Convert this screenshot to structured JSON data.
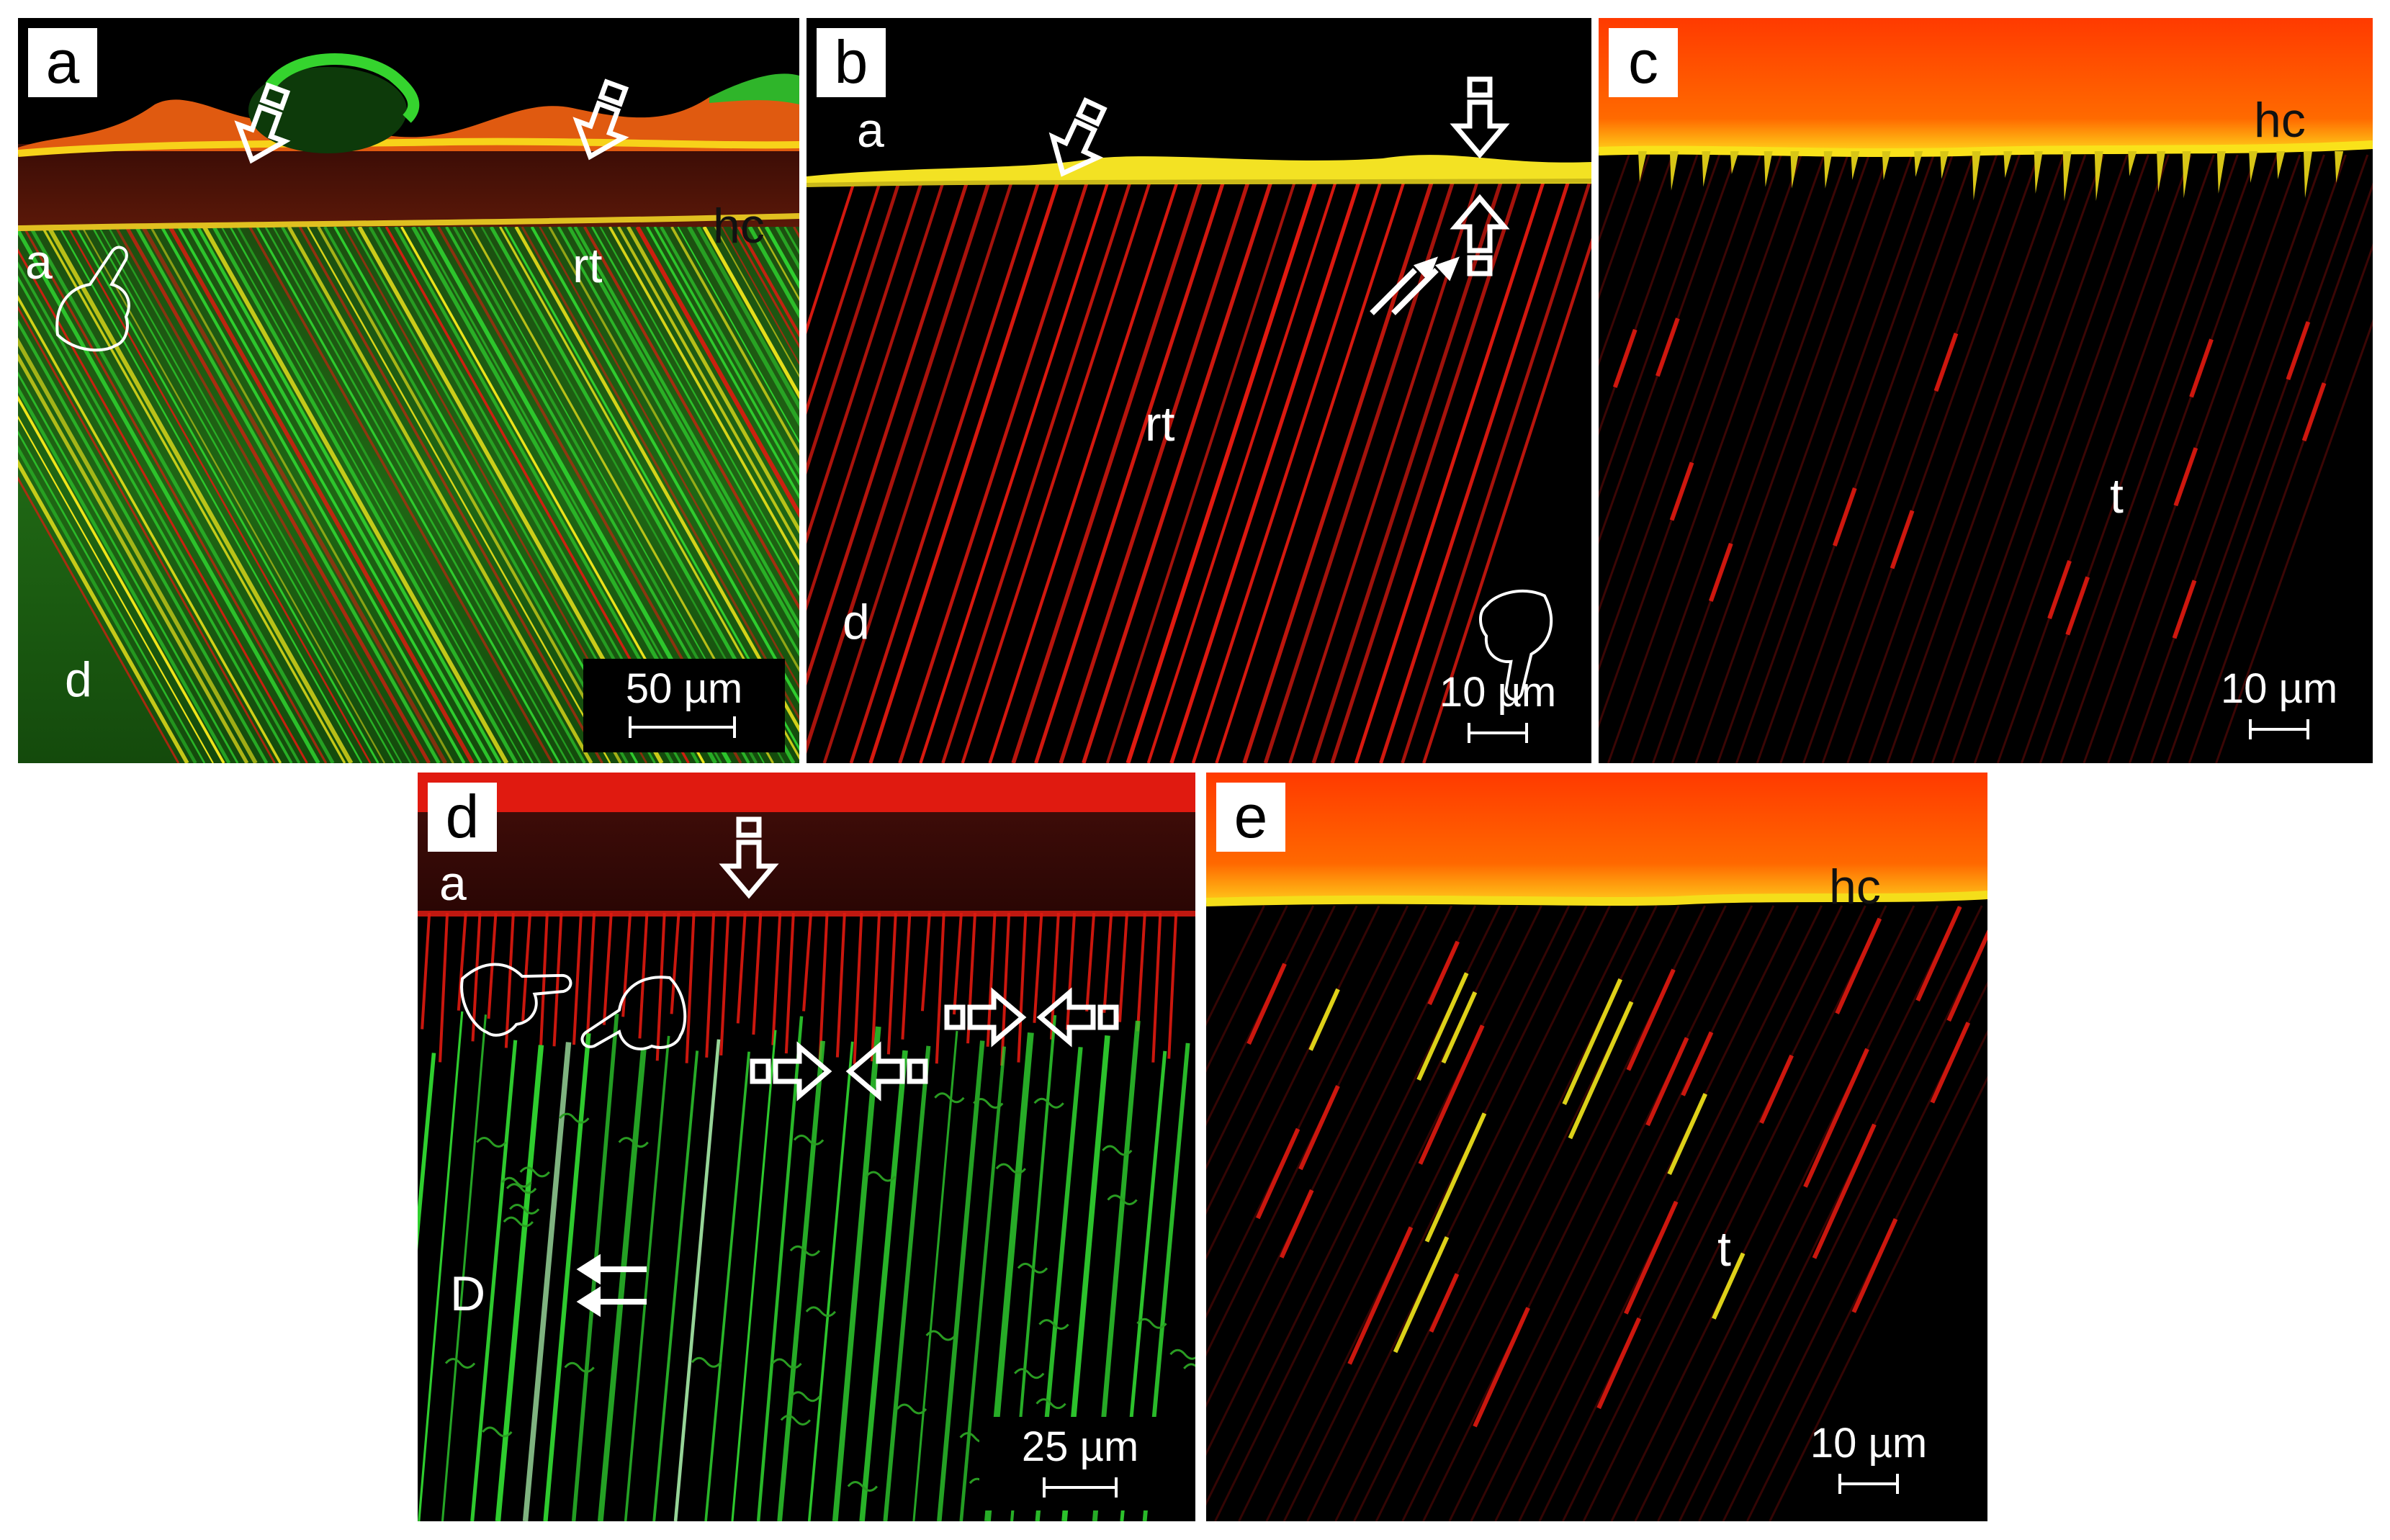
{
  "panels": {
    "a": {
      "label": "a",
      "annotations": {
        "a": "a",
        "hc": "hc",
        "rt": "rt",
        "d": "d"
      },
      "scale": "50 µm"
    },
    "b": {
      "label": "b",
      "annotations": {
        "a": "a",
        "rt": "rt",
        "d": "d"
      },
      "scale": "10 µm"
    },
    "c": {
      "label": "c",
      "annotations": {
        "hc": "hc",
        "t": "t"
      },
      "scale": "10 µm"
    },
    "d": {
      "label": "d",
      "annotations": {
        "a": "a",
        "D": "D"
      },
      "scale": "25 µm"
    },
    "e": {
      "label": "e",
      "annotations": {
        "hc": "hc",
        "t": "t"
      },
      "scale": "10 µm"
    }
  },
  "colors": {
    "green": "#2fd12f",
    "red": "#e01a10",
    "yellow": "#f4e81c",
    "orange": "#ff4a00",
    "background": "#000000"
  },
  "icons": [
    "down-arrow-icon",
    "up-arrow-icon",
    "right-arrow-icon",
    "left-arrow-icon",
    "double-arrow-icon",
    "pointing-hand-icon"
  ]
}
